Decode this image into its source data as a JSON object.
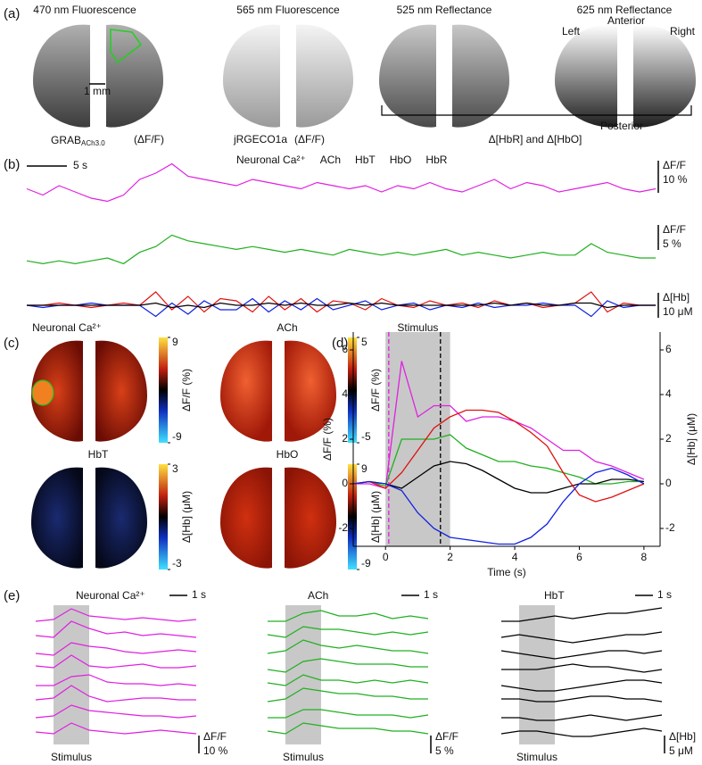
{
  "figure": {
    "panel_labels": [
      "(a)",
      "(b)",
      "(c)",
      "(d)",
      "(e)"
    ],
    "panel_a": {
      "titles": [
        "470 nm Fluorescence",
        "565 nm Fluorescence",
        "525 nm Reflectance",
        "625 nm Reflectance"
      ],
      "scale_bar": "1 mm",
      "caption_grab": "GRAB",
      "caption_grab_sub": "ACh3.0",
      "caption_dff_1": "(ΔF/F)",
      "caption_jrgeco": "jRGECO1a",
      "caption_dff_2": "(ΔF/F)",
      "anterior": "Anterior",
      "posterior": "Posterior",
      "left": "Left",
      "right": "Right",
      "bracket_label": "Δ[HbR] and Δ[HbO]"
    },
    "panel_c": {
      "maps": [
        {
          "title": "Neuronal Ca²⁺",
          "ticks": [
            9,
            -9
          ],
          "label": "ΔF/F (%)"
        },
        {
          "title": "ACh",
          "ticks": [
            5,
            -5
          ],
          "label": "ΔF/F (%)"
        },
        {
          "title": "HbT",
          "ticks": [
            3,
            -3
          ],
          "label": "Δ[Hb] (μM)"
        },
        {
          "title": "HbO",
          "ticks": [
            9,
            -9
          ],
          "label": "Δ[Hb] (μM)"
        }
      ]
    }
  },
  "chart_data": [
    {
      "type": "line",
      "time_scale": "5 s",
      "scale_bars": [
        {
          "label": "ΔF/F",
          "value": "10 %"
        },
        {
          "label": "ΔF/F",
          "value": "5 %"
        },
        {
          "label": "Δ[Hb]",
          "value": "10 μM"
        }
      ],
      "x": [
        0,
        2,
        4,
        6,
        8,
        10,
        12,
        14,
        16,
        18,
        20,
        22,
        24,
        26,
        28,
        30,
        32,
        34,
        36,
        38,
        40,
        42,
        44,
        46,
        48,
        50,
        52,
        54,
        56,
        58,
        60,
        62,
        64,
        66,
        68,
        70,
        72,
        74,
        76,
        78
      ],
      "series": [
        {
          "name": "Neuronal Ca²⁺",
          "color": "#e020e0",
          "values": [
            1,
            -1,
            2,
            0,
            -2,
            -3,
            -1,
            4,
            6,
            9,
            5,
            4,
            3,
            2,
            4,
            3,
            2,
            1,
            3,
            2,
            1,
            2,
            0,
            2,
            1,
            3,
            1,
            0,
            2,
            4,
            1,
            3,
            2,
            0,
            1,
            2,
            3,
            1,
            0,
            1
          ]
        },
        {
          "name": "ACh",
          "color": "#20b020",
          "values": [
            -1,
            -2,
            -1,
            -2,
            -1,
            0,
            -2,
            2,
            4,
            8,
            6,
            5,
            4,
            3,
            4,
            3,
            2,
            3,
            2,
            1,
            3,
            2,
            1,
            2,
            1,
            2,
            3,
            1,
            2,
            1,
            0,
            1,
            2,
            1,
            1,
            5,
            2,
            1,
            0,
            0
          ]
        },
        {
          "name": "HbT",
          "color": "#000000",
          "values": [
            0,
            0,
            0,
            0,
            0,
            0,
            0,
            0,
            1,
            -1,
            0,
            -1,
            1,
            0,
            0,
            1,
            0,
            1,
            0,
            0,
            1,
            0,
            1,
            0,
            0,
            0,
            0,
            0,
            0,
            1,
            0,
            1,
            0,
            0,
            1,
            1,
            -1,
            0,
            0,
            0
          ]
        },
        {
          "name": "HbO",
          "color": "#e01010",
          "values": [
            0,
            0,
            1,
            0,
            -1,
            0,
            1,
            0,
            6,
            -2,
            4,
            -3,
            3,
            2,
            -3,
            4,
            -2,
            3,
            -3,
            2,
            1,
            -2,
            3,
            0,
            -1,
            2,
            0,
            1,
            -1,
            2,
            0,
            1,
            -1,
            0,
            1,
            6,
            -3,
            1,
            0,
            0
          ]
        },
        {
          "name": "HbR",
          "color": "#1020e0",
          "values": [
            0,
            -1,
            0,
            0,
            1,
            0,
            0,
            0,
            -5,
            1,
            -4,
            2,
            -2,
            -2,
            3,
            -3,
            2,
            -2,
            3,
            -2,
            0,
            2,
            -2,
            0,
            1,
            -2,
            0,
            -1,
            1,
            -1,
            0,
            0,
            1,
            0,
            0,
            -5,
            2,
            -1,
            0,
            0
          ]
        }
      ]
    },
    {
      "type": "line",
      "xlabel": "Time (s)",
      "ylabel": "ΔF/F (%)",
      "y2label": "Δ[Hb] (μM)",
      "annotation": "Stimulus",
      "stimulus": [
        0,
        2
      ],
      "markers": [
        {
          "value": 0.1,
          "color": "#e020e0"
        },
        {
          "value": 1.7,
          "color": "#000000"
        }
      ],
      "xlim": [
        -1,
        8.5
      ],
      "ylim": [
        -2.8,
        6.8
      ],
      "y2lim": [
        -2.8,
        6.8
      ],
      "xticks": [
        0,
        2,
        4,
        6,
        8
      ],
      "yticks": [
        -2,
        0,
        2,
        4,
        6
      ],
      "y2ticks": [
        -2,
        0,
        2,
        4,
        6
      ],
      "x": [
        -1,
        -0.5,
        0,
        0.5,
        1,
        1.5,
        2,
        2.5,
        3,
        3.5,
        4,
        4.5,
        5,
        5.5,
        6,
        6.5,
        7,
        7.5,
        8
      ],
      "series": [
        {
          "color": "#e020e0",
          "values": [
            0,
            0,
            -0.2,
            5.5,
            3,
            3.5,
            3.5,
            2.8,
            3,
            3,
            2.8,
            2.5,
            2,
            1.5,
            1.5,
            1,
            0.8,
            0.5,
            0.2
          ]
        },
        {
          "color": "#20b020",
          "values": [
            0,
            0.1,
            -0.1,
            2,
            2,
            2,
            2.2,
            1.6,
            1.3,
            1,
            1,
            0.8,
            0.7,
            0.5,
            0.3,
            0,
            0,
            0.1,
            0.1
          ]
        },
        {
          "color": "#000000",
          "axis": "y2",
          "values": [
            0,
            0.1,
            0,
            -0.2,
            0.3,
            0.8,
            1,
            0.9,
            0.6,
            0.2,
            -0.2,
            -0.4,
            -0.4,
            -0.2,
            0,
            0,
            0.2,
            0.2,
            0.1
          ]
        },
        {
          "color": "#e01010",
          "axis": "y2",
          "values": [
            0,
            0.1,
            -0.2,
            0.5,
            1.5,
            2.5,
            3,
            3.3,
            3.3,
            3.2,
            2.8,
            2.3,
            1.7,
            0.5,
            -0.5,
            -0.8,
            -0.6,
            -0.3,
            0
          ]
        },
        {
          "color": "#1020e0",
          "axis": "y2",
          "values": [
            0,
            0.1,
            0,
            -0.3,
            -1.3,
            -2,
            -2.4,
            -2.5,
            -2.6,
            -2.7,
            -2.7,
            -2.4,
            -1.8,
            -0.8,
            0,
            0.5,
            0.7,
            0.4,
            0
          ]
        }
      ]
    },
    {
      "type": "line",
      "title": "Neuronal Ca²⁺",
      "time_scale": "1 s",
      "scale_label": "ΔF/F",
      "scale_value": "10 %",
      "annotation": "Stimulus",
      "stimulus": [
        0,
        2
      ],
      "x": [
        -1,
        0,
        1,
        2,
        3,
        4,
        5,
        6,
        7,
        8
      ],
      "series": [
        {
          "color": "#e020e0",
          "values": [
            0,
            1,
            7,
            3,
            2,
            1,
            2,
            1,
            0,
            1
          ]
        },
        {
          "color": "#e020e0",
          "values": [
            1,
            0,
            9,
            5,
            2,
            3,
            1,
            2,
            1,
            0
          ]
        },
        {
          "color": "#e020e0",
          "values": [
            0,
            -1,
            6,
            4,
            3,
            1,
            0,
            1,
            2,
            1
          ]
        },
        {
          "color": "#e020e0",
          "values": [
            2,
            1,
            8,
            2,
            1,
            2,
            3,
            1,
            1,
            2
          ]
        },
        {
          "color": "#e020e0",
          "values": [
            0,
            0,
            5,
            6,
            2,
            1,
            1,
            0,
            1,
            0
          ]
        },
        {
          "color": "#e020e0",
          "values": [
            1,
            2,
            9,
            3,
            0,
            1,
            2,
            2,
            1,
            1
          ]
        },
        {
          "color": "#e020e0",
          "values": [
            0,
            1,
            7,
            4,
            3,
            2,
            1,
            1,
            0,
            1
          ]
        },
        {
          "color": "#e020e0",
          "values": [
            1,
            0,
            6,
            2,
            1,
            0,
            1,
            2,
            1,
            0
          ]
        }
      ]
    },
    {
      "type": "line",
      "title": "ACh",
      "time_scale": "1 s",
      "scale_label": "ΔF/F",
      "scale_value": "5 %",
      "annotation": "Stimulus",
      "stimulus": [
        0,
        2
      ],
      "x": [
        -1,
        0,
        1,
        2,
        3,
        4,
        5,
        6,
        7,
        8
      ],
      "series": [
        {
          "color": "#20b020",
          "values": [
            0,
            0,
            3,
            4,
            2,
            2,
            3,
            1,
            2,
            1
          ]
        },
        {
          "color": "#20b020",
          "values": [
            1,
            0,
            4,
            3,
            3,
            2,
            1,
            2,
            1,
            2
          ]
        },
        {
          "color": "#20b020",
          "values": [
            0,
            1,
            5,
            3,
            2,
            3,
            2,
            1,
            1,
            0
          ]
        },
        {
          "color": "#20b020",
          "values": [
            0,
            -1,
            3,
            4,
            3,
            2,
            2,
            2,
            1,
            1
          ]
        },
        {
          "color": "#20b020",
          "values": [
            1,
            0,
            4,
            2,
            2,
            1,
            2,
            1,
            2,
            1
          ]
        },
        {
          "color": "#20b020",
          "values": [
            0,
            1,
            5,
            4,
            3,
            3,
            2,
            2,
            1,
            1
          ]
        },
        {
          "color": "#20b020",
          "values": [
            0,
            0,
            3,
            3,
            2,
            1,
            1,
            1,
            0,
            1
          ]
        },
        {
          "color": "#20b020",
          "values": [
            1,
            0,
            4,
            3,
            2,
            2,
            2,
            1,
            1,
            0
          ]
        }
      ]
    },
    {
      "type": "line",
      "title": "HbT",
      "time_scale": "1 s",
      "scale_label": "Δ[Hb]",
      "scale_value": "5 μM",
      "annotation": "Stimulus",
      "stimulus": [
        0,
        2
      ],
      "x": [
        -1,
        0,
        1,
        2,
        3,
        4,
        5,
        6,
        7,
        8
      ],
      "series": [
        {
          "color": "#000000",
          "values": [
            0,
            0,
            1,
            2,
            1,
            2,
            3,
            3,
            4,
            5
          ]
        },
        {
          "color": "#000000",
          "values": [
            0,
            1,
            0,
            -1,
            -2,
            -1,
            0,
            1,
            1,
            2
          ]
        },
        {
          "color": "#000000",
          "values": [
            1,
            0,
            -1,
            -2,
            -1,
            0,
            1,
            1,
            0,
            1
          ]
        },
        {
          "color": "#000000",
          "values": [
            0,
            0,
            0,
            1,
            2,
            1,
            1,
            0,
            -1,
            0
          ]
        },
        {
          "color": "#000000",
          "values": [
            0,
            -1,
            -2,
            -2,
            -1,
            0,
            1,
            2,
            2,
            1
          ]
        },
        {
          "color": "#000000",
          "values": [
            1,
            1,
            0,
            0,
            1,
            2,
            2,
            1,
            1,
            0
          ]
        },
        {
          "color": "#000000",
          "values": [
            0,
            0,
            -1,
            -1,
            0,
            1,
            0,
            -1,
            0,
            1
          ]
        },
        {
          "color": "#000000",
          "values": [
            0,
            1,
            1,
            0,
            -1,
            -1,
            0,
            1,
            2,
            1
          ]
        }
      ]
    }
  ]
}
